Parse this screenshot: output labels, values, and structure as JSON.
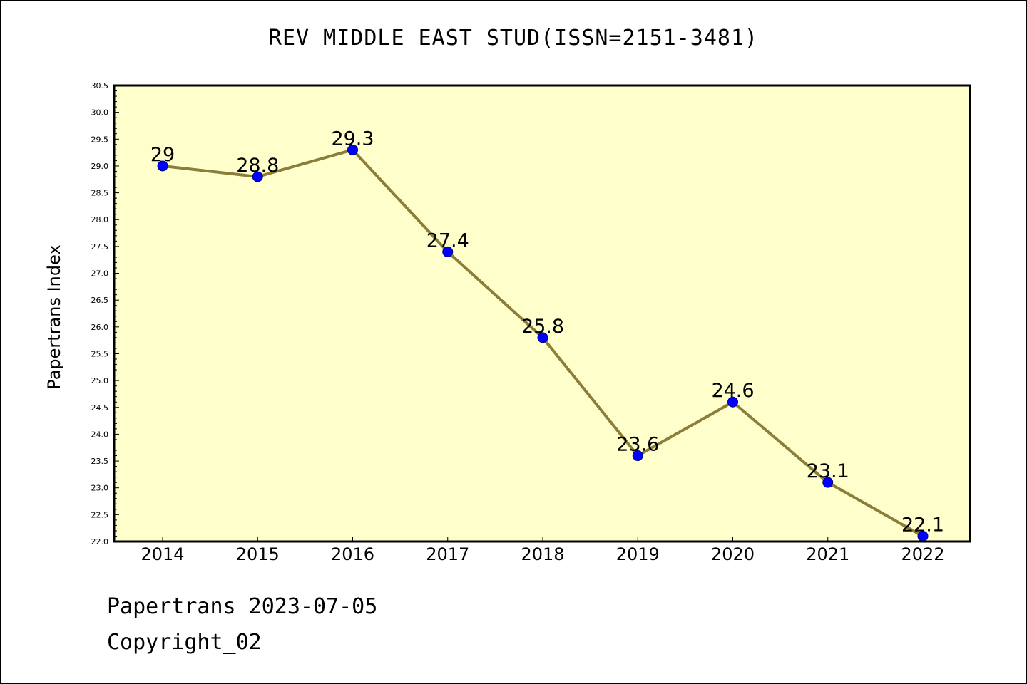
{
  "colors": {
    "plot_background": "#ffffcc",
    "line": "#8b7d3a",
    "marker": "#0000ff",
    "axis": "#000000"
  },
  "chart_data": {
    "type": "line",
    "title": "REV MIDDLE EAST STUD(ISSN=2151-3481)",
    "xlabel": "",
    "ylabel": "Papertrans Index",
    "categories": [
      "2014",
      "2015",
      "2016",
      "2017",
      "2018",
      "2019",
      "2020",
      "2021",
      "2022"
    ],
    "series": [
      {
        "values": [
          29,
          28.8,
          29.3,
          27.4,
          25.8,
          23.6,
          24.6,
          23.1,
          22.1
        ],
        "labels": [
          "29",
          "28.8",
          "29.3",
          "27.4",
          "25.8",
          "23.6",
          "24.6",
          "23.1",
          "22.1"
        ]
      }
    ],
    "ylim": [
      22.0,
      30.5
    ],
    "yticks": [
      "22.0",
      "22.5",
      "23.0",
      "23.5",
      "24.0",
      "24.5",
      "25.0",
      "25.5",
      "26.0",
      "26.5",
      "27.0",
      "27.5",
      "28.0",
      "28.5",
      "29.0",
      "29.5",
      "30.0",
      "30.5"
    ],
    "grid": false,
    "legend": "none"
  },
  "footer": {
    "source": "Papertrans 2023-07-05",
    "copyright": "Copyright_02"
  }
}
